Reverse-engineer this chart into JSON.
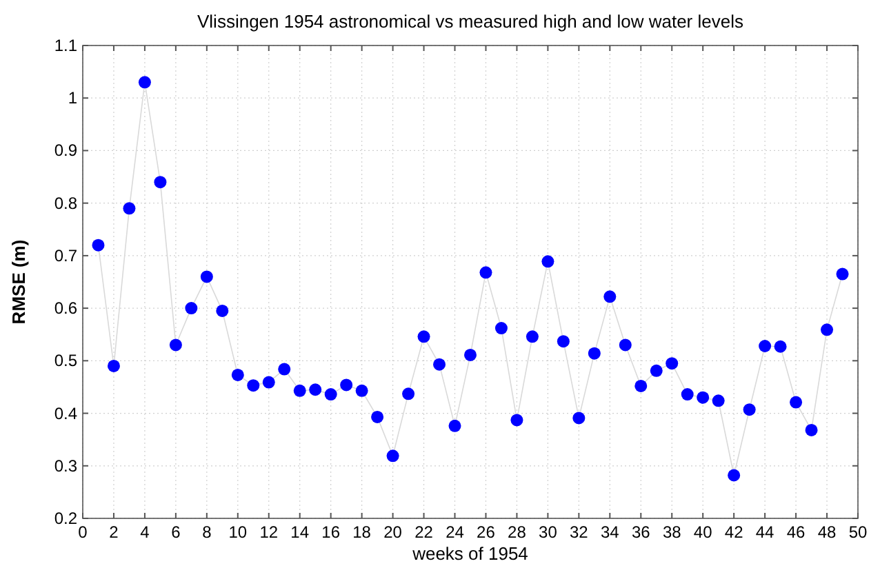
{
  "chart_data": {
    "type": "line",
    "title": "Vlissingen 1954 astronomical vs measured high and low water levels",
    "xlabel": "weeks of 1954",
    "ylabel": "RMSE (m)",
    "x": [
      1,
      2,
      3,
      4,
      5,
      6,
      7,
      8,
      9,
      10,
      11,
      12,
      13,
      14,
      15,
      16,
      17,
      18,
      19,
      20,
      21,
      22,
      23,
      24,
      25,
      26,
      27,
      28,
      29,
      30,
      31,
      32,
      33,
      34,
      35,
      36,
      37,
      38,
      39,
      40,
      41,
      42,
      43,
      44,
      45,
      46,
      47,
      48,
      49
    ],
    "series": [
      {
        "color": "#0000ff",
        "values": [
          0.72,
          0.49,
          0.79,
          1.03,
          0.84,
          0.53,
          0.6,
          0.66,
          0.595,
          0.473,
          0.453,
          0.459,
          0.484,
          0.443,
          0.445,
          0.436,
          0.454,
          0.443,
          0.393,
          0.319,
          0.437,
          0.546,
          0.493,
          0.376,
          0.511,
          0.668,
          0.562,
          0.387,
          0.546,
          0.689,
          0.537,
          0.391,
          0.514,
          0.622,
          0.53,
          0.452,
          0.481,
          0.495,
          0.436,
          0.43,
          0.424,
          0.282,
          0.407,
          0.528,
          0.527,
          0.421,
          0.368,
          0.559,
          0.665
        ]
      }
    ],
    "xlim": [
      0,
      50
    ],
    "xticks": [
      0,
      2,
      4,
      6,
      8,
      10,
      12,
      14,
      16,
      18,
      20,
      22,
      24,
      26,
      28,
      30,
      32,
      34,
      36,
      38,
      40,
      42,
      44,
      46,
      48,
      50
    ],
    "ylim": [
      0.2,
      1.1
    ],
    "yticks": [
      0.2,
      0.3,
      0.4,
      0.5,
      0.6,
      0.7,
      0.8,
      0.9,
      1,
      1.1
    ],
    "grid": true,
    "marker": "circle",
    "line_style": "solid"
  }
}
